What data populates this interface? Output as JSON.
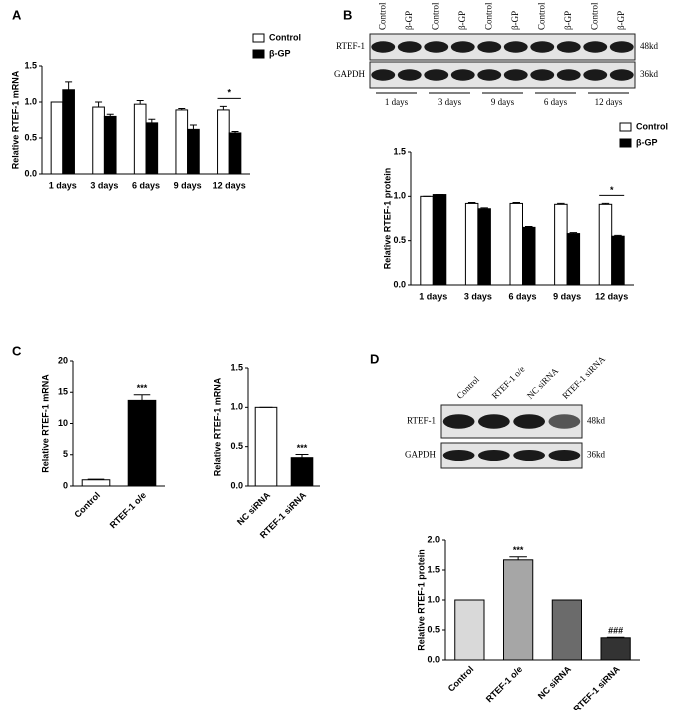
{
  "figure_labels": [
    "A",
    "B",
    "C",
    "D"
  ],
  "blots": [
    {
      "columns": [
        "Control",
        "β-GP",
        "Control",
        "β-GP",
        "Control",
        "β-GP",
        "Control",
        "β-GP",
        "Control",
        "β-GP"
      ],
      "rows": [
        {
          "name": "RTEF-1",
          "size": "48kd"
        },
        {
          "name": "GAPDH",
          "size": "36kd"
        }
      ],
      "groups": [
        "1 days",
        "3 days",
        "9 days",
        "6 days",
        "12 days"
      ]
    },
    {
      "columns": [
        "Control",
        "RTEF-1 o/e",
        "NC siRNA",
        "RTEF-1 siRNA"
      ],
      "rows": [
        {
          "name": "RTEF-1",
          "size": "48kd"
        },
        {
          "name": "GAPDH",
          "size": "36kd"
        }
      ]
    }
  ],
  "chart_data": [
    {
      "type": "bar",
      "ylabel": "Relative RTEF-1 mRNA",
      "categories": [
        "1 days",
        "3 days",
        "6 days",
        "9 days",
        "12 days"
      ],
      "series": [
        {
          "name": "Control",
          "color": "#ffffff",
          "values": [
            1.0,
            0.93,
            0.97,
            0.89,
            0.89
          ],
          "errors": [
            0,
            0.07,
            0.05,
            0.02,
            0.05
          ]
        },
        {
          "name": "β-GP",
          "color": "#000000",
          "values": [
            1.17,
            0.8,
            0.71,
            0.62,
            0.57
          ],
          "errors": [
            0.11,
            0.03,
            0.05,
            0.06,
            0.02
          ]
        }
      ],
      "annotations": [
        {
          "text": "*",
          "category": "12 days"
        }
      ],
      "ylim": [
        0,
        1.5
      ],
      "yticks": [
        {
          "value": 0,
          "label": "0.0"
        },
        {
          "value": 0.5,
          "label": "0.5"
        },
        {
          "value": 1,
          "label": "1.0"
        },
        {
          "value": 1.5,
          "label": "1.5"
        }
      ],
      "legend": "upper right"
    },
    {
      "type": "bar",
      "ylabel": "Relative RTEF-1 protein",
      "categories": [
        "1 days",
        "3 days",
        "6 days",
        "9 days",
        "12 days"
      ],
      "series": [
        {
          "name": "Control",
          "color": "#ffffff",
          "values": [
            1.0,
            0.92,
            0.92,
            0.91,
            0.91
          ],
          "errors": [
            0,
            0.01,
            0.01,
            0.01,
            0.01
          ]
        },
        {
          "name": "β-GP",
          "color": "#000000",
          "values": [
            1.02,
            0.86,
            0.65,
            0.58,
            0.55
          ],
          "errors": [
            0,
            0.01,
            0.01,
            0.01,
            0.01
          ]
        }
      ],
      "annotations": [
        {
          "text": "*",
          "category": "12 days"
        }
      ],
      "ylim": [
        0,
        1.5
      ],
      "yticks": [
        {
          "value": 0,
          "label": "0.0"
        },
        {
          "value": 0.5,
          "label": "0.5"
        },
        {
          "value": 1,
          "label": "1.0"
        },
        {
          "value": 1.5,
          "label": "1.5"
        }
      ],
      "legend": "upper right"
    },
    {
      "type": "bar",
      "ylabel": "Relative RTEF-1 mRNA",
      "categories": [
        "Control",
        "RTEF-1 o/e"
      ],
      "series": [
        {
          "colors": [
            "#ffffff",
            "#000000"
          ],
          "values": [
            1,
            13.7
          ],
          "errors": [
            0.1,
            0.9
          ],
          "annotations": [
            null,
            "***"
          ]
        }
      ],
      "ylim": [
        0,
        20
      ],
      "yticks": [
        0,
        5,
        10,
        15,
        20
      ],
      "xtick_rotation": 45
    },
    {
      "type": "bar",
      "ylabel": "Relative RTEF-1 mRNA",
      "categories": [
        "NC siRNA",
        "RTEF-1 siRNA"
      ],
      "series": [
        {
          "colors": [
            "#ffffff",
            "#000000"
          ],
          "values": [
            1.0,
            0.36
          ],
          "errors": [
            0,
            0.04
          ],
          "annotations": [
            null,
            "***"
          ]
        }
      ],
      "ylim": [
        0,
        1.5
      ],
      "yticks": [
        {
          "value": 0,
          "label": "0.0"
        },
        {
          "value": 0.5,
          "label": "0.5"
        },
        {
          "value": 1,
          "label": "1.0"
        },
        {
          "value": 1.5,
          "label": "1.5"
        }
      ],
      "xtick_rotation": 45
    },
    {
      "type": "bar",
      "ylabel": "Relative RTEF-1 protein",
      "categories": [
        "Control",
        "RTEF-1 o/e",
        "NC siRNA",
        "RTEF-1 siRNA"
      ],
      "series": [
        {
          "colors": [
            "#d9d9d9",
            "#a6a6a6",
            "#6b6b6b",
            "#333333"
          ],
          "values": [
            1.0,
            1.67,
            1.0,
            0.37
          ],
          "errors": [
            0,
            0.05,
            0,
            0.01
          ],
          "annotations": [
            null,
            "***",
            null,
            "###"
          ]
        }
      ],
      "ylim": [
        0,
        2
      ],
      "yticks": [
        {
          "value": 0,
          "label": "0.0"
        },
        {
          "value": 0.5,
          "label": "0.5"
        },
        {
          "value": 1,
          "label": "1.0"
        },
        {
          "value": 1.5,
          "label": "1.5"
        },
        {
          "value": 2,
          "label": "2.0"
        }
      ],
      "xtick_rotation": 45
    }
  ]
}
